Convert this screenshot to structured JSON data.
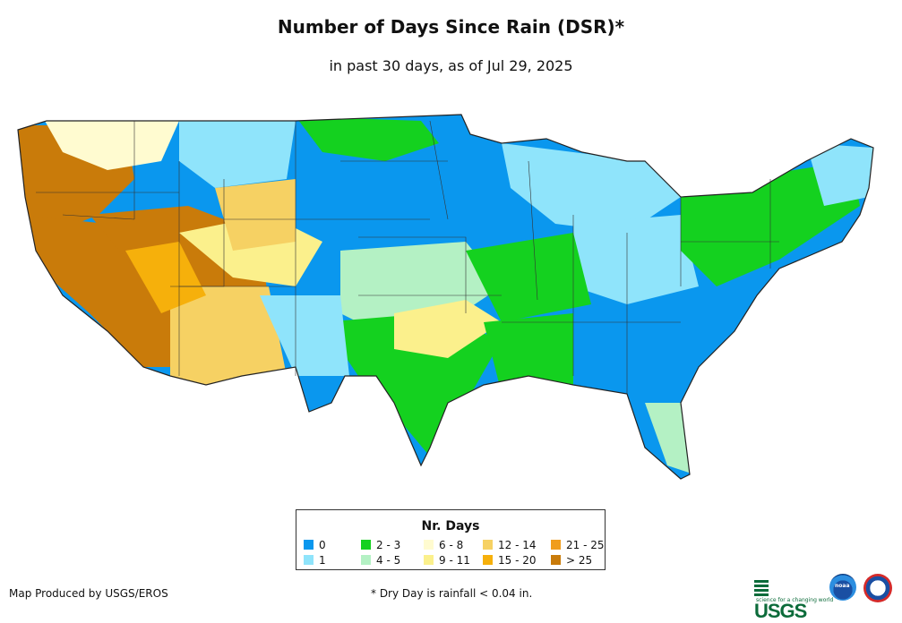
{
  "header": {
    "title": "Number of Days Since Rain (DSR)*",
    "subtitle": "in past 30 days, as of Jul 29, 2025"
  },
  "legend": {
    "title": "Nr. Days",
    "items": [
      {
        "label": "0",
        "color": "#0a97ee"
      },
      {
        "label": "1",
        "color": "#8fe4fb"
      },
      {
        "label": "2 - 3",
        "color": "#14d11f"
      },
      {
        "label": "4 - 5",
        "color": "#b4f1c4"
      },
      {
        "label": "6 - 8",
        "color": "#fffbd0"
      },
      {
        "label": "9 - 11",
        "color": "#fbf08c"
      },
      {
        "label": "12 - 14",
        "color": "#f6d163"
      },
      {
        "label": "15 - 20",
        "color": "#f6b00b"
      },
      {
        "label": "21 - 25",
        "color": "#f09d1c"
      },
      {
        "label": "> 25",
        "color": "#c97b0a"
      }
    ]
  },
  "footer": {
    "credit": "Map Produced by USGS/EROS",
    "footnote": "* Dry Day is rainfall < 0.04 in."
  },
  "logos": {
    "usgs_text": "USGS",
    "usgs_tagline": "science for a changing world",
    "noaa_text": "noaa"
  },
  "map_regions": [
    {
      "region": "pacific-northwest",
      "category": "> 25"
    },
    {
      "region": "california",
      "category": "> 25"
    },
    {
      "region": "great-basin",
      "category": "> 25"
    },
    {
      "region": "southwest-desert",
      "category": "12 - 14"
    },
    {
      "region": "northern-rockies",
      "category": "0"
    },
    {
      "region": "northern-plains",
      "category": "0"
    },
    {
      "region": "central-plains",
      "category": "0"
    },
    {
      "region": "southern-plains",
      "category": "4 - 5"
    },
    {
      "region": "texas",
      "category": "2 - 3"
    },
    {
      "region": "southeast",
      "category": "0"
    },
    {
      "region": "florida",
      "category": "0"
    },
    {
      "region": "ohio-valley",
      "category": "1"
    },
    {
      "region": "great-lakes",
      "category": "1"
    },
    {
      "region": "northeast",
      "category": "2 - 3"
    },
    {
      "region": "mid-atlantic",
      "category": "2 - 3"
    },
    {
      "region": "new-england-coast",
      "category": "1"
    }
  ]
}
